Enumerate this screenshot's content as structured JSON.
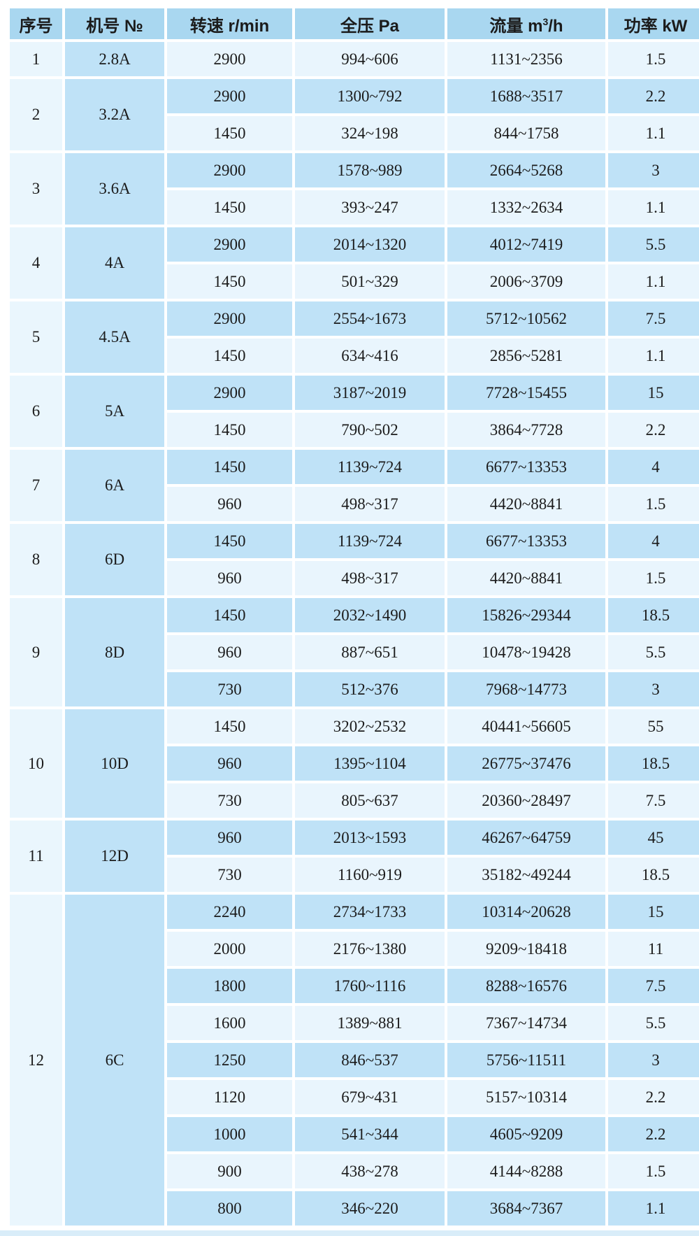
{
  "header": {
    "col1": "序号",
    "col2": "机号 №",
    "col3": "转速 r/min",
    "col4": "全压 Pa",
    "col5_main": "流量 m",
    "col5_sup": "3",
    "col5_tail": "/h",
    "col6": "功率 kW"
  },
  "colors": {
    "header_bg": "#a9d7f0",
    "row_dark": "#bfe2f7",
    "row_light": "#e9f5fd",
    "grid": "#ffffff",
    "text": "#1b1b1b",
    "bottom_strip": "#d9edf9"
  },
  "chart_data": {
    "type": "table",
    "title": "",
    "columns": [
      "序号",
      "机号 №",
      "转速 r/min",
      "全压 Pa",
      "流量 m³/h",
      "功率 kW"
    ],
    "groups": [
      {
        "seq": "1",
        "model": "2.8A",
        "rows": [
          [
            "2900",
            "994~606",
            "1131~2356",
            "1.5"
          ]
        ]
      },
      {
        "seq": "2",
        "model": "3.2A",
        "rows": [
          [
            "2900",
            "1300~792",
            "1688~3517",
            "2.2"
          ],
          [
            "1450",
            "324~198",
            "844~1758",
            "1.1"
          ]
        ]
      },
      {
        "seq": "3",
        "model": "3.6A",
        "rows": [
          [
            "2900",
            "1578~989",
            "2664~5268",
            "3"
          ],
          [
            "1450",
            "393~247",
            "1332~2634",
            "1.1"
          ]
        ]
      },
      {
        "seq": "4",
        "model": "4A",
        "rows": [
          [
            "2900",
            "2014~1320",
            "4012~7419",
            "5.5"
          ],
          [
            "1450",
            "501~329",
            "2006~3709",
            "1.1"
          ]
        ]
      },
      {
        "seq": "5",
        "model": "4.5A",
        "rows": [
          [
            "2900",
            "2554~1673",
            "5712~10562",
            "7.5"
          ],
          [
            "1450",
            "634~416",
            "2856~5281",
            "1.1"
          ]
        ]
      },
      {
        "seq": "6",
        "model": "5A",
        "rows": [
          [
            "2900",
            "3187~2019",
            "7728~15455",
            "15"
          ],
          [
            "1450",
            "790~502",
            "3864~7728",
            "2.2"
          ]
        ]
      },
      {
        "seq": "7",
        "model": "6A",
        "rows": [
          [
            "1450",
            "1139~724",
            "6677~13353",
            "4"
          ],
          [
            "960",
            "498~317",
            "4420~8841",
            "1.5"
          ]
        ]
      },
      {
        "seq": "8",
        "model": "6D",
        "rows": [
          [
            "1450",
            "1139~724",
            "6677~13353",
            "4"
          ],
          [
            "960",
            "498~317",
            "4420~8841",
            "1.5"
          ]
        ]
      },
      {
        "seq": "9",
        "model": "8D",
        "rows": [
          [
            "1450",
            "2032~1490",
            "15826~29344",
            "18.5"
          ],
          [
            "960",
            "887~651",
            "10478~19428",
            "5.5"
          ],
          [
            "730",
            "512~376",
            "7968~14773",
            "3"
          ]
        ]
      },
      {
        "seq": "10",
        "model": "10D",
        "rows": [
          [
            "1450",
            "3202~2532",
            "40441~56605",
            "55"
          ],
          [
            "960",
            "1395~1104",
            "26775~37476",
            "18.5"
          ],
          [
            "730",
            "805~637",
            "20360~28497",
            "7.5"
          ]
        ]
      },
      {
        "seq": "11",
        "model": "12D",
        "rows": [
          [
            "960",
            "2013~1593",
            "46267~64759",
            "45"
          ],
          [
            "730",
            "1160~919",
            "35182~49244",
            "18.5"
          ]
        ]
      },
      {
        "seq": "12",
        "model": "6C",
        "rows": [
          [
            "2240",
            "2734~1733",
            "10314~20628",
            "15"
          ],
          [
            "2000",
            "2176~1380",
            "9209~18418",
            "11"
          ],
          [
            "1800",
            "1760~1116",
            "8288~16576",
            "7.5"
          ],
          [
            "1600",
            "1389~881",
            "7367~14734",
            "5.5"
          ],
          [
            "1250",
            "846~537",
            "5756~11511",
            "3"
          ],
          [
            "1120",
            "679~431",
            "5157~10314",
            "2.2"
          ],
          [
            "1000",
            "541~344",
            "4605~9209",
            "2.2"
          ],
          [
            "900",
            "438~278",
            "4144~8288",
            "1.5"
          ],
          [
            "800",
            "346~220",
            "3684~7367",
            "1.1"
          ]
        ]
      }
    ]
  }
}
